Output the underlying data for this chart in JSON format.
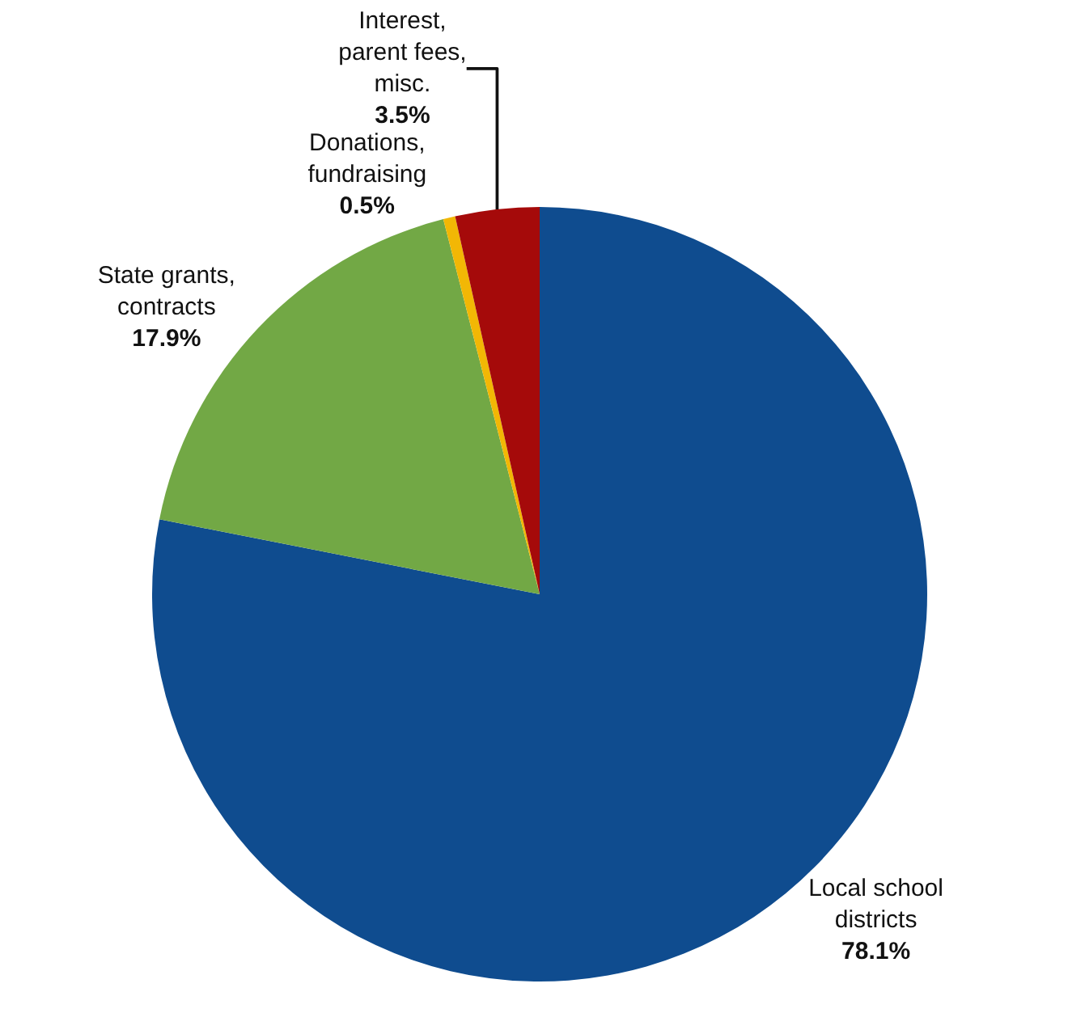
{
  "chart_data": {
    "type": "pie",
    "categories": [
      "Local school districts",
      "State grants, contracts",
      "Donations, fundraising",
      "Interest, parent fees, misc."
    ],
    "values": [
      78.1,
      17.9,
      0.5,
      3.5
    ],
    "colors": [
      "#0f4c8f",
      "#72a845",
      "#f2b705",
      "#a50a0a"
    ],
    "value_labels": [
      "78.1%",
      "17.9%",
      "0.5%",
      "3.5%"
    ],
    "legend": false
  }
}
